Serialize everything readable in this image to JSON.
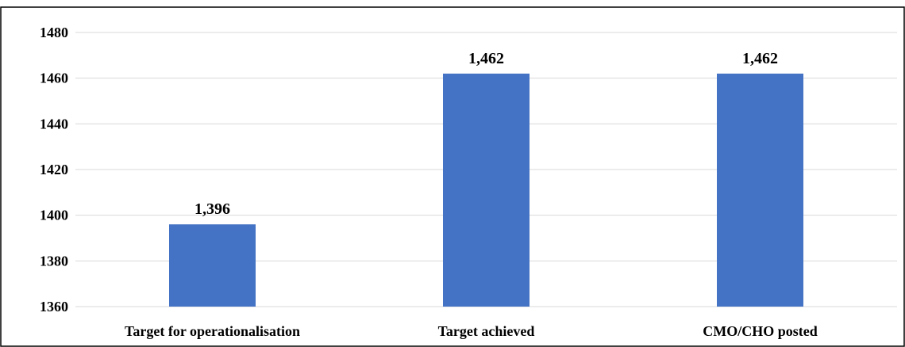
{
  "chart_data": {
    "type": "bar",
    "title": "",
    "xlabel": "",
    "ylabel": "",
    "categories": [
      "Target for operationalisation",
      "Target achieved",
      "CMO/CHO posted"
    ],
    "values": [
      1396,
      1462,
      1462
    ],
    "data_labels": [
      "1,396",
      "1,462",
      "1,462"
    ],
    "ylim": [
      1360,
      1480
    ],
    "yticks": [
      1360,
      1380,
      1400,
      1420,
      1440,
      1460,
      1480
    ],
    "ytick_labels": [
      "1360",
      "1380",
      "1400",
      "1420",
      "1440",
      "1460",
      "1480"
    ],
    "grid": true,
    "legend": "none",
    "bar_color": "#4472c4"
  }
}
